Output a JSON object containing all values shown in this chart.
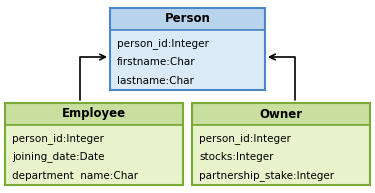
{
  "person_title": "Person",
  "person_fields": [
    "person_id:Integer",
    "firstname:Char",
    "lastname:Char"
  ],
  "employee_title": "Employee",
  "employee_fields": [
    "person_id:Integer",
    "joining_date:Date",
    "department  name:Char"
  ],
  "owner_title": "Owner",
  "owner_fields": [
    "person_id:Integer",
    "stocks:Integer",
    "partnership_stake:Integer"
  ],
  "person_header_bg": "#b8d4ec",
  "person_body_bg": "#daeaf7",
  "person_border": "#4a86c8",
  "employee_header_bg": "#c8dfa0",
  "employee_body_bg": "#e8f3cc",
  "employee_border": "#7aaa33",
  "owner_header_bg": "#c8dfa0",
  "owner_body_bg": "#e8f3cc",
  "owner_border": "#7aaa33",
  "bg_color": "#ffffff",
  "title_fontsize": 8.5,
  "field_fontsize": 7.5
}
